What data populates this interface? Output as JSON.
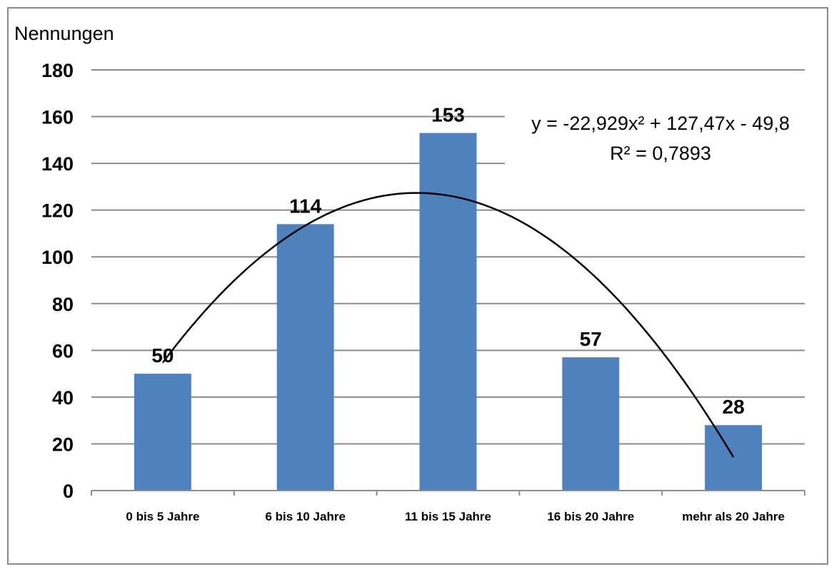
{
  "chart_data": {
    "type": "bar",
    "unit_label": "Nennungen",
    "categories": [
      "0 bis 5 Jahre",
      "6 bis 10 Jahre",
      "11 bis 15 Jahre",
      "16 bis 20 Jahre",
      "mehr als 20 Jahre"
    ],
    "values": [
      50,
      114,
      153,
      57,
      28
    ],
    "data_labels": [
      "50",
      "114",
      "153",
      "57",
      "28"
    ],
    "ylim": [
      0,
      180
    ],
    "yticks": [
      "0",
      "20",
      "40",
      "60",
      "80",
      "100",
      "120",
      "140",
      "160",
      "180"
    ],
    "grid": true,
    "bar_color": "#4f81bd",
    "trendline": {
      "type": "polynomial",
      "order": 2,
      "coefficients": {
        "a": -22.929,
        "b": 127.47,
        "c": -49.8
      },
      "equation_text": "y = -22,929x² + 127,47x - 49,8",
      "r2_text": "R² = 0,7893",
      "color": "#000000"
    }
  }
}
